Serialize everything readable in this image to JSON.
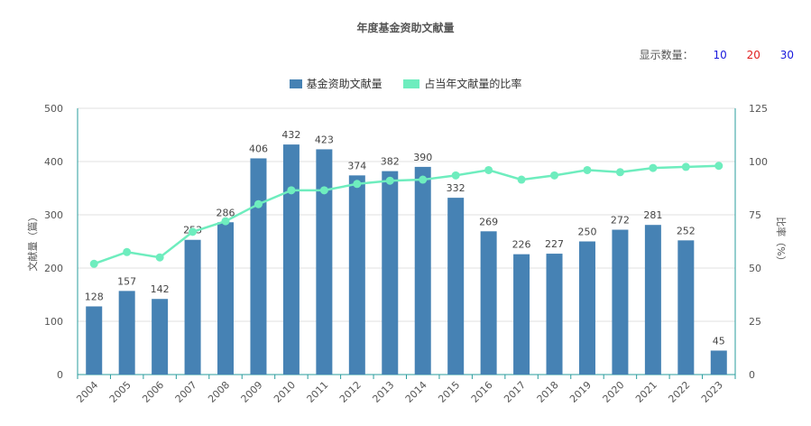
{
  "title": "年度基金资助文献量",
  "count_selector": {
    "label": "显示数量：",
    "options": [
      {
        "label": "10",
        "color": "#1a1adc"
      },
      {
        "label": "20",
        "color": "#e02020"
      },
      {
        "label": "30",
        "color": "#1a1adc"
      }
    ]
  },
  "colors": {
    "bar": "#4682b4",
    "line": "#6eedbe",
    "axis": "#2a9d9d",
    "grid": "#e0e0e0"
  },
  "chart_data": {
    "type": "bar",
    "title": "年度基金资助文献量",
    "categories": [
      "2004",
      "2005",
      "2006",
      "2007",
      "2008",
      "2009",
      "2010",
      "2011",
      "2012",
      "2013",
      "2014",
      "2015",
      "2016",
      "2017",
      "2018",
      "2019",
      "2020",
      "2021",
      "2022",
      "2023"
    ],
    "series": [
      {
        "name": "基金资助文献量",
        "type": "bar",
        "axis": "left",
        "values": [
          128,
          157,
          142,
          253,
          286,
          406,
          432,
          423,
          374,
          382,
          390,
          332,
          269,
          226,
          227,
          250,
          272,
          281,
          252,
          45
        ]
      },
      {
        "name": "占当年文献量的比率",
        "type": "line",
        "axis": "right",
        "values": [
          52,
          57.5,
          55,
          67,
          72,
          80,
          86.5,
          86.5,
          89.5,
          91,
          91.5,
          93.5,
          96,
          91.5,
          93.5,
          96,
          95,
          97,
          97.5,
          98
        ]
      }
    ],
    "ylabel": "文献量（篇）",
    "ylabel_right": "比率（%）",
    "ylim": [
      0,
      500
    ],
    "yticks": [
      "0",
      "100",
      "200",
      "300",
      "400",
      "500"
    ],
    "ylim_right": [
      0,
      125
    ],
    "yticks_right": [
      "0",
      "25",
      "50",
      "75",
      "100",
      "125"
    ],
    "grid": true,
    "legend_position": "top-center"
  }
}
